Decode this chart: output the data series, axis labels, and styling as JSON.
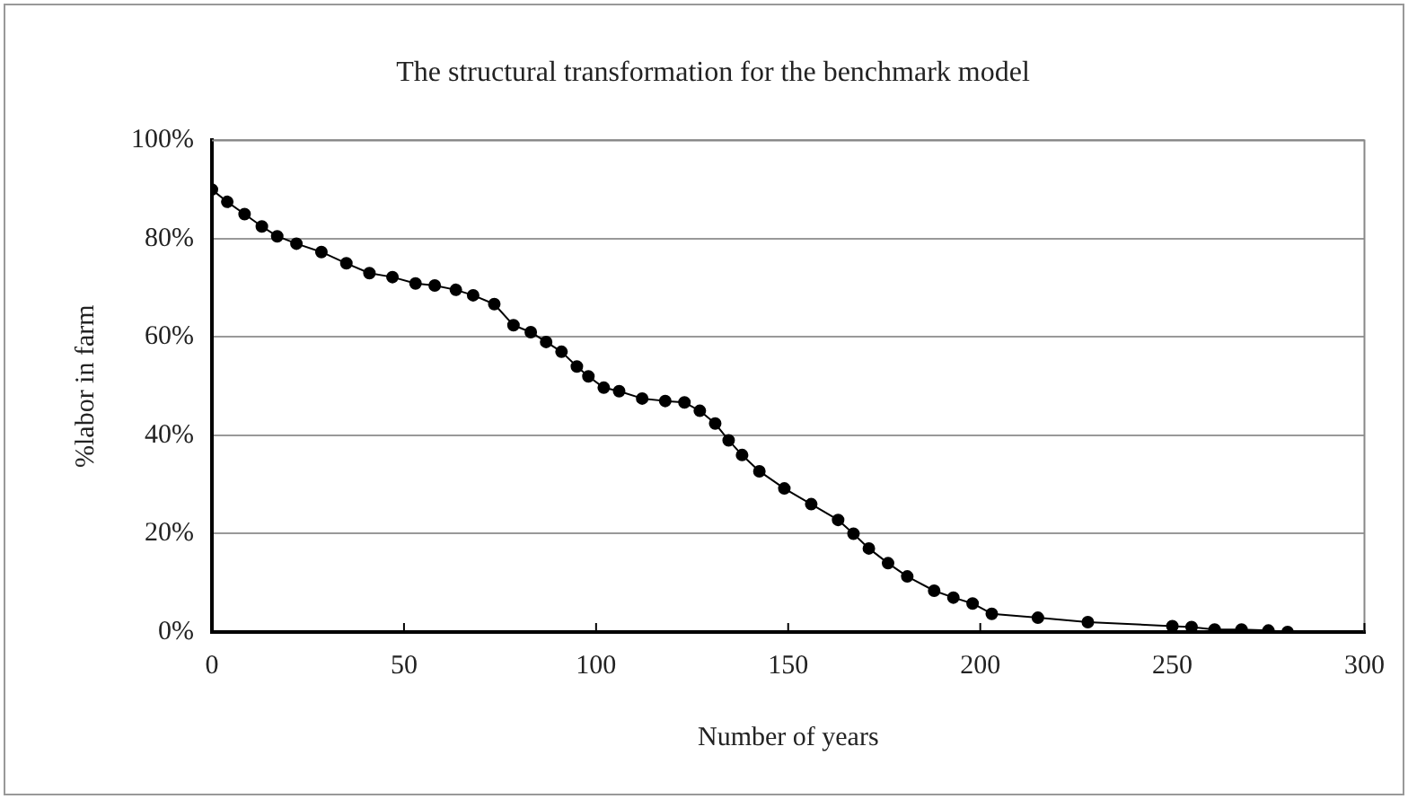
{
  "chart_data": {
    "type": "line",
    "title": "The structural transformation for the benchmark model",
    "xlabel": "Number of years",
    "ylabel": "%labor in farm",
    "x": [
      0,
      4,
      8.5,
      13,
      17,
      22,
      28.5,
      35,
      41,
      47,
      53,
      58,
      63.5,
      68,
      73.5,
      78.5,
      83,
      87,
      91,
      95,
      98,
      102,
      106,
      112,
      118,
      123,
      127,
      131,
      134.5,
      138,
      142.5,
      149,
      156,
      163,
      167,
      171,
      176,
      181,
      188,
      193,
      198,
      203,
      215,
      228,
      250,
      255,
      261,
      268,
      275,
      280
    ],
    "series": [
      {
        "color": "#000000",
        "values": [
          90,
          87.5,
          85,
          82.5,
          80.5,
          79,
          77.3,
          75,
          73,
          72.2,
          70.9,
          70.5,
          69.6,
          68.5,
          66.7,
          62.4,
          61,
          59,
          57,
          54,
          52,
          49.7,
          49,
          47.5,
          47,
          46.7,
          45,
          42.4,
          39,
          36,
          32.7,
          29.2,
          26,
          22.8,
          20,
          17,
          14,
          11.3,
          8.4,
          7,
          5.8,
          3.7,
          2.9,
          2,
          1.2,
          1,
          0.5,
          0.5,
          0.3,
          0
        ]
      }
    ],
    "xlim": [
      0,
      300
    ],
    "xticks": [
      0,
      50,
      100,
      150,
      200,
      250,
      300
    ],
    "ylim": [
      0,
      100
    ],
    "yticks": [
      {
        "value": 0,
        "label": "0%"
      },
      {
        "value": 20,
        "label": "20%"
      },
      {
        "value": 40,
        "label": "40%"
      },
      {
        "value": 60,
        "label": "60%"
      },
      {
        "value": 80,
        "label": "80%"
      },
      {
        "value": 100,
        "label": "100%"
      }
    ],
    "grid": "y",
    "legend": false,
    "marker": "circle",
    "line_style": "solid"
  }
}
